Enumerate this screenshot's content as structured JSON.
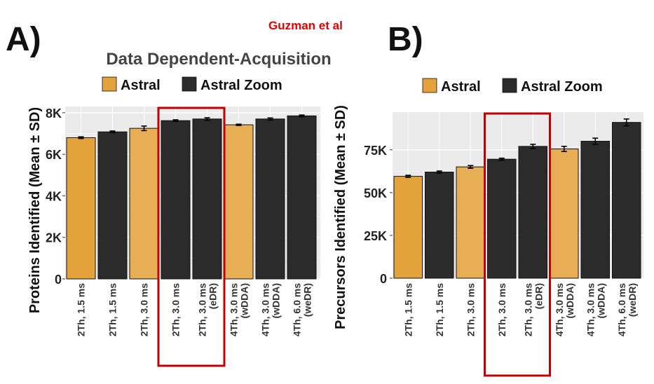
{
  "figure": {
    "credit": "Guzman et al",
    "main_title": "Data Dependent-Acquisition",
    "accent_color": "#dd0000",
    "highlight_color": "#c00000"
  },
  "chart_data": [
    {
      "type": "bar",
      "panel_label": "A)",
      "title": "Data Dependent-Acquisition",
      "ylabel": "Proteins Identified (Mean ± SD)",
      "xlabel": "",
      "ylim": [
        0,
        8300
      ],
      "ticks": [
        0,
        2000,
        4000,
        6000,
        8000
      ],
      "tick_labels": [
        "0",
        "2K",
        "4K",
        "6K",
        "8K"
      ],
      "legend": [
        {
          "label": "Astral",
          "color": "#e3a33a"
        },
        {
          "label": "Astral Zoom",
          "color": "#2b2b2b"
        }
      ],
      "legend_position": "top",
      "categories": [
        [
          "2Th, 1.5 ms"
        ],
        [
          "2Th, 1.5 ms"
        ],
        [
          "2Th, 3.0 ms"
        ],
        [
          "2Th, 3.0 ms"
        ],
        [
          "2Th, 3.0 ms",
          "(eDR)"
        ],
        [
          "4Th, 3.0 ms",
          "(wDDA)"
        ],
        [
          "4Th, 3.0 ms",
          "(wDDA)"
        ],
        [
          "4Th, 6.0 ms",
          "(weDR)"
        ]
      ],
      "values": [
        6800,
        7080,
        7250,
        7620,
        7700,
        7420,
        7700,
        7850
      ],
      "errors": [
        40,
        40,
        110,
        40,
        60,
        30,
        50,
        40
      ],
      "instrument": [
        "Astral",
        "Astral Zoom",
        "Astral",
        "Astral Zoom",
        "Astral Zoom",
        "Astral",
        "Astral Zoom",
        "Astral Zoom"
      ],
      "highlight": [
        3,
        4
      ]
    },
    {
      "type": "bar",
      "panel_label": "B)",
      "title": "",
      "ylabel": "Precursors Identified (Mean ± SD)",
      "xlabel": "",
      "ylim": [
        0,
        97000
      ],
      "ticks": [
        0,
        25000,
        50000,
        75000
      ],
      "tick_labels": [
        "0",
        "25K",
        "50K",
        "75K"
      ],
      "legend": [
        {
          "label": "Astral",
          "color": "#e3a33a"
        },
        {
          "label": "Astral Zoom",
          "color": "#2b2b2b"
        }
      ],
      "legend_position": "top",
      "categories": [
        [
          "2Th, 1.5 ms"
        ],
        [
          "2Th, 1.5 ms"
        ],
        [
          "2Th, 3.0 ms"
        ],
        [
          "2Th, 3.0 ms"
        ],
        [
          "2Th, 3.0 ms",
          "(eDR)"
        ],
        [
          "4Th, 3.0 ms",
          "(wDDA)"
        ],
        [
          "4Th, 3.0 ms",
          "(wDDA)"
        ],
        [
          "4Th, 6.0 ms",
          "(weDR)"
        ]
      ],
      "values": [
        59500,
        62000,
        65000,
        69500,
        77000,
        75500,
        80000,
        91000
      ],
      "errors": [
        600,
        600,
        800,
        600,
        1200,
        1500,
        1800,
        2000
      ],
      "instrument": [
        "Astral",
        "Astral Zoom",
        "Astral",
        "Astral Zoom",
        "Astral Zoom",
        "Astral",
        "Astral Zoom",
        "Astral Zoom"
      ],
      "highlight": [
        3,
        4
      ]
    }
  ]
}
